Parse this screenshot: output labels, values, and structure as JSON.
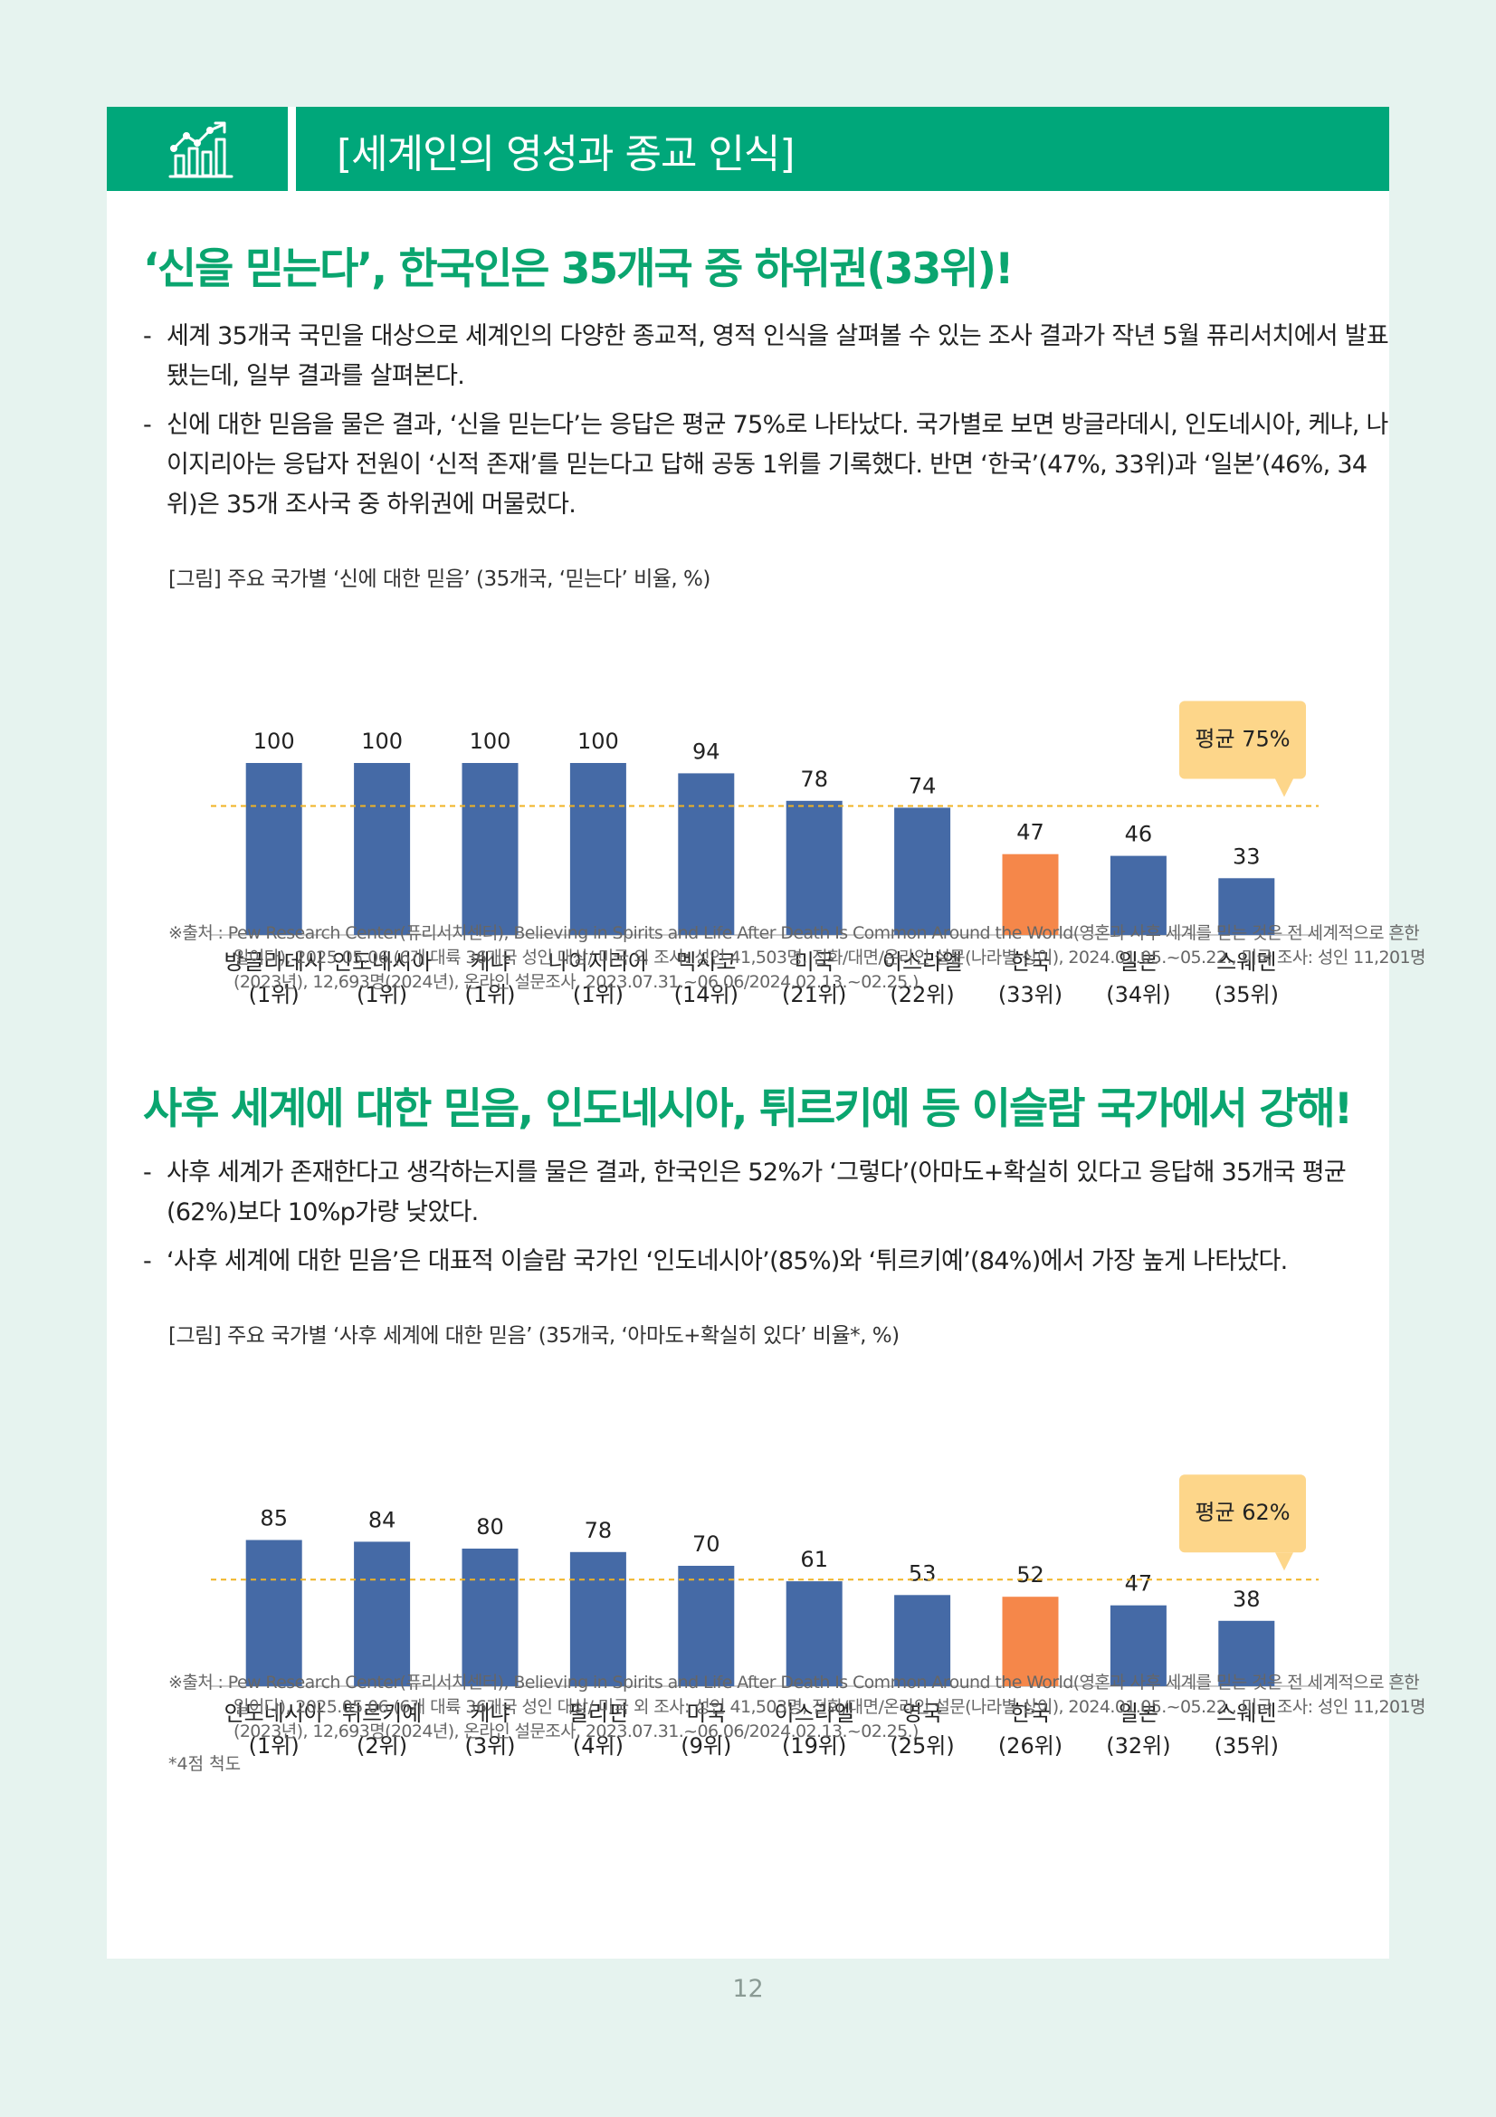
{
  "header": {
    "title": "[세계인의 영성과 종교 인식]",
    "icon": "bar-chart-growth-icon"
  },
  "section1": {
    "title": "‘신을 믿는다’, 한국인은 35개국 중 하위권(33위)!",
    "bullets": [
      "세계 35개국 국민을 대상으로 세계인의 다양한 종교적, 영적 인식을 살펴볼 수 있는 조사 결과가 작년 5월 퓨리서치에서 발표됐는데, 일부 결과를 살펴본다.",
      "신에 대한 믿음을 물은 결과, ‘신을 믿는다’는 응답은 평균 75%로 나타났다. 국가별로 보면 방글라데시, 인도네시아, 케냐, 나이지리아는 응답자 전원이 ‘신적 존재’를 믿는다고 답해 공동 1위를 기록했다. 반면 ‘한국’(47%, 33위)과 ‘일본’(46%, 34위)은 35개 조사국 중 하위권에 머물렀다."
    ],
    "figure_caption": "[그림] 주요 국가별 ‘신에 대한 믿음’ (35개국, ‘믿는다’ 비율, %)",
    "source_label": "※출처 : ",
    "source_text": "Pew Research Center(퓨리서치센터), Believing in Spirits and Life After Death Is Common Around the World(영혼과 사후 세계를 믿는 것은 전 세계적으로 흔한 일이다), 2025.05.06.(6개 대륙 36개국 성인 대상/ 미국 외 조사: 성인 41,503명, 전화/대면/온라인 설문(나라별 상이), 2024.01.05.~05.22., 미국 조사: 성인 11,201명(2023년), 12,693명(2024년), 온라인 설문조사, 2023.07.31.~06.06/2024.02.13.~02.25.)"
  },
  "section2": {
    "title": "사후 세계에 대한 믿음, 인도네시아, 튀르키예 등 이슬람 국가에서 강해!",
    "bullets": [
      "사후 세계가 존재한다고 생각하는지를 물은 결과, 한국인은 52%가 ‘그렇다’(아마도+확실히 있다고 응답해 35개국 평균(62%)보다 10%p가량 낮았다.",
      "‘사후 세계에 대한 믿음’은 대표적 이슬람 국가인 ‘인도네시아’(85%)와 ‘튀르키예’(84%)에서 가장 높게 나타났다."
    ],
    "figure_caption": "[그림] 주요 국가별 ‘사후 세계에 대한 믿음’ (35개국, ‘아마도+확실히 있다’ 비율*, %)",
    "source_label": "※출처 : ",
    "source_text": "Pew Research Center(퓨리서치센터), Believing in Spirits and Life After Death Is Common Around the World(영혼과 사후 세계를 믿는 것은 전 세계적으로 흔한 일이다), 2025.05.06.(6개 대륙 36개국 성인 대상/ 미국 외 조사: 성인 41,503명, 전화/대면/온라인 설문(나라별 상이), 2024.01.05.~05.22., 미국 조사: 성인 11,201명(2023년), 12,693명(2024년), 온라인 설문조사, 2023.07.31.~06.06/2024.02.13.~02.25.)",
    "footnote": "*4점 척도"
  },
  "chart_data": [
    {
      "type": "bar",
      "categories": [
        "방글라데시",
        "인도네시아",
        "케냐",
        "나이지리아",
        "멕시코",
        "미국",
        "이스라엘",
        "한국",
        "일본",
        "스웨덴"
      ],
      "ranks": [
        "(1위)",
        "(1위)",
        "(1위)",
        "(1위)",
        "(14위)",
        "(21위)",
        "(22위)",
        "(33위)",
        "(34위)",
        "(35위)"
      ],
      "values": [
        100,
        100,
        100,
        100,
        94,
        78,
        74,
        47,
        46,
        33
      ],
      "ylim": [
        0,
        100
      ],
      "average": 75,
      "average_label": "평균 75%",
      "highlight_index": 7,
      "colors": {
        "bar": "#456aa6",
        "highlight": "#f5874a",
        "average_line": "#f0b323",
        "callout": "#fdd68a"
      }
    },
    {
      "type": "bar",
      "categories": [
        "인도네시아",
        "튀르키예",
        "케냐",
        "필리핀",
        "미국",
        "이스라엘",
        "영국",
        "한국",
        "일본",
        "스웨덴"
      ],
      "ranks": [
        "(1위)",
        "(2위)",
        "(3위)",
        "(4위)",
        "(9위)",
        "(19위)",
        "(25위)",
        "(26위)",
        "(32위)",
        "(35위)"
      ],
      "values": [
        85,
        84,
        80,
        78,
        70,
        61,
        53,
        52,
        47,
        38
      ],
      "ylim": [
        0,
        100
      ],
      "average": 62,
      "average_label": "평균 62%",
      "highlight_index": 7,
      "colors": {
        "bar": "#456aa6",
        "highlight": "#f5874a",
        "average_line": "#f0b323",
        "callout": "#fdd68a"
      }
    }
  ],
  "page_number": "12"
}
